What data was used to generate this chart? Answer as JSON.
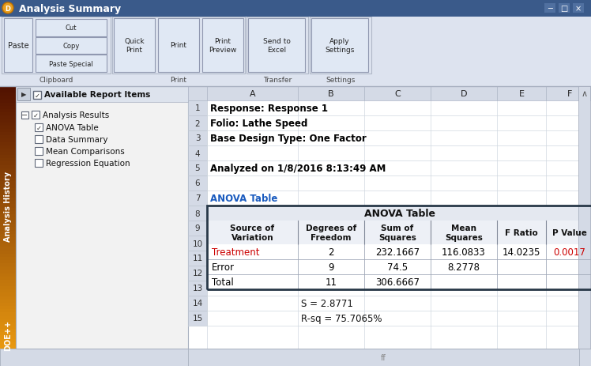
{
  "title_bar": "Analysis Summary",
  "title_bar_color": "#3a5a8a",
  "title_bar_text_color": "#ffffff",
  "bg_color": "#d4dae6",
  "ribbon_bg": "#dde3ef",
  "left_panel_bg": "#f2f2f2",
  "grid_color": "#c8d0dc",
  "sidebar_text": "Analysis History",
  "sidebar_text2": "DOE++",
  "col_headers": [
    "A",
    "B",
    "C",
    "D",
    "E",
    "F"
  ],
  "info_rows": {
    "1": {
      "text": "Response: Response 1",
      "bold": true,
      "color": "#000000"
    },
    "2": {
      "text": "Folio: Lathe Speed",
      "bold": true,
      "color": "#000000"
    },
    "3": {
      "text": "Base Design Type: One Factor",
      "bold": true,
      "color": "#000000"
    },
    "4": {
      "text": "",
      "bold": false,
      "color": "#000000"
    },
    "5": {
      "text": "Analyzed on 1/8/2016 8:13:49 AM",
      "bold": true,
      "color": "#000000"
    },
    "6": {
      "text": "",
      "bold": false,
      "color": "#000000"
    },
    "7": {
      "text": "ANOVA Table",
      "bold": true,
      "color": "#1a5bbf"
    }
  },
  "anova_table_title": "ANOVA Table",
  "anova_headers": [
    "Source of\nVariation",
    "Degrees of\nFreedom",
    "Sum of\nSquares",
    "Mean\nSquares",
    "F Ratio",
    "P Value"
  ],
  "anova_rows": [
    {
      "source": "Treatment",
      "df": "2",
      "ss": "232.1667",
      "ms": "116.0833",
      "f": "14.0235",
      "p": "0.0017",
      "source_color": "#cc0000",
      "p_color": "#cc0000"
    },
    {
      "source": "Error",
      "df": "9",
      "ss": "74.5",
      "ms": "8.2778",
      "f": "",
      "p": "",
      "source_color": "#000000",
      "p_color": "#000000"
    },
    {
      "source": "Total",
      "df": "11",
      "ss": "306.6667",
      "ms": "",
      "f": "",
      "p": "",
      "source_color": "#000000",
      "p_color": "#000000"
    }
  ],
  "footer_rows": {
    "14": {
      "col": 1,
      "text": "S = 2.8771"
    },
    "15": {
      "col": 1,
      "text": "R-sq = 75.7065%"
    }
  }
}
